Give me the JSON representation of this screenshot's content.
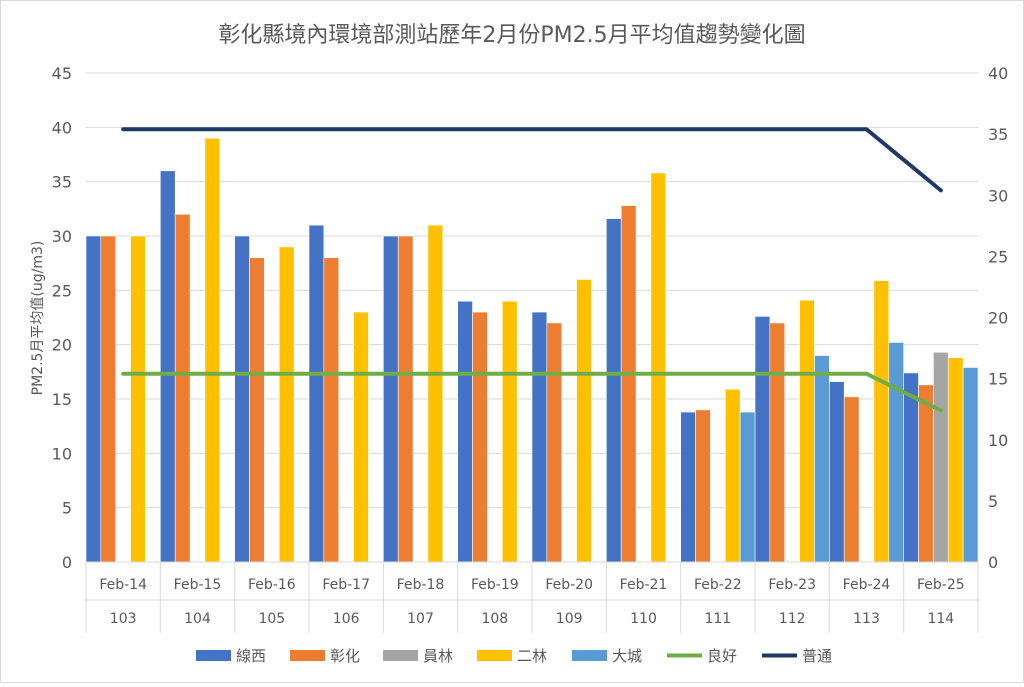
{
  "chart_data": {
    "type": "bar",
    "title": "彰化縣境內環境部測站歷年2月份PM2.5月平均值趨勢變化圖",
    "ylabel": "PM2.5月平均值(ug/m3)",
    "ylim": [
      0,
      45
    ],
    "yticks": [
      0,
      5,
      10,
      15,
      20,
      25,
      30,
      35,
      40,
      45
    ],
    "y2lim": [
      0,
      40
    ],
    "y2ticks": [
      0,
      5,
      10,
      15,
      20,
      25,
      30,
      35,
      40
    ],
    "grid": true,
    "legend_position": "bottom",
    "categories": [
      "Feb-14",
      "Feb-15",
      "Feb-16",
      "Feb-17",
      "Feb-18",
      "Feb-19",
      "Feb-20",
      "Feb-21",
      "Feb-22",
      "Feb-23",
      "Feb-24",
      "Feb-25"
    ],
    "category_groups": [
      "103",
      "104",
      "105",
      "106",
      "107",
      "108",
      "109",
      "110",
      "111",
      "112",
      "113",
      "114"
    ],
    "series": [
      {
        "name": "線西",
        "type": "bar",
        "axis": "left",
        "color": "#4472C4",
        "values": [
          30,
          36,
          30,
          31,
          30,
          24,
          23,
          31.6,
          13.8,
          22.6,
          16.6,
          17.4
        ]
      },
      {
        "name": "彰化",
        "type": "bar",
        "axis": "left",
        "color": "#ED7D31",
        "values": [
          30,
          32,
          28,
          28,
          30,
          23,
          22,
          32.8,
          14.0,
          22.0,
          15.2,
          16.3
        ]
      },
      {
        "name": "員林",
        "type": "bar",
        "axis": "left",
        "color": "#A5A5A5",
        "values": [
          null,
          null,
          null,
          null,
          null,
          null,
          null,
          null,
          null,
          null,
          null,
          19.3
        ]
      },
      {
        "name": "二林",
        "type": "bar",
        "axis": "left",
        "color": "#FFC000",
        "values": [
          30,
          39,
          29,
          23,
          31,
          24,
          26,
          35.8,
          15.9,
          24.1,
          25.9,
          18.8
        ]
      },
      {
        "name": "大城",
        "type": "bar",
        "axis": "left",
        "color": "#5B9BD5",
        "values": [
          null,
          null,
          null,
          null,
          null,
          null,
          null,
          null,
          13.8,
          19.0,
          20.2,
          17.9
        ]
      },
      {
        "name": "良好",
        "type": "line",
        "axis": "right",
        "color": "#70AD47",
        "values": [
          15.4,
          15.4,
          15.4,
          15.4,
          15.4,
          15.4,
          15.4,
          15.4,
          15.4,
          15.4,
          15.4,
          12.4
        ]
      },
      {
        "name": "普通",
        "type": "line",
        "axis": "right",
        "color": "#203864",
        "values": [
          35.4,
          35.4,
          35.4,
          35.4,
          35.4,
          35.4,
          35.4,
          35.4,
          35.4,
          35.4,
          35.4,
          30.4
        ]
      }
    ]
  }
}
